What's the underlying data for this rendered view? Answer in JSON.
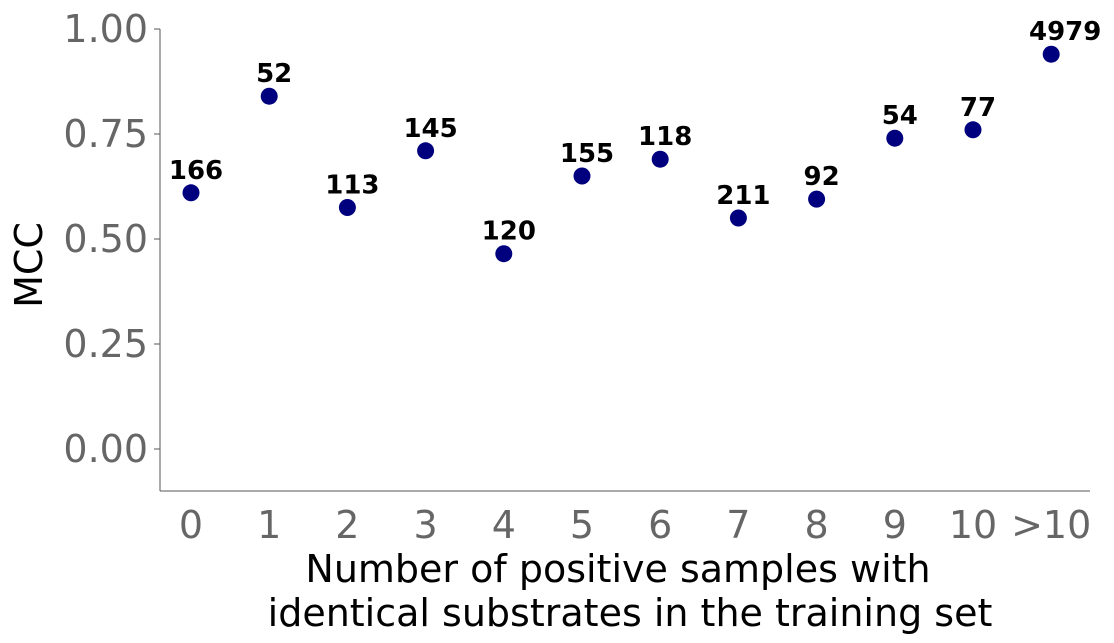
{
  "chart_data": {
    "type": "scatter",
    "title": "",
    "xlabel_lines": [
      "Number of positive samples with",
      "identical substrates in the training set"
    ],
    "ylabel": "MCC",
    "categories": [
      "0",
      "1",
      "2",
      "3",
      "4",
      "5",
      "6",
      "7",
      "8",
      "9",
      "10",
      ">10"
    ],
    "values": [
      0.61,
      0.84,
      0.575,
      0.71,
      0.465,
      0.65,
      0.69,
      0.55,
      0.595,
      0.74,
      0.76,
      0.94
    ],
    "point_labels": [
      "166",
      "52",
      "113",
      "145",
      "120",
      "155",
      "118",
      "211",
      "92",
      "54",
      "77",
      "4979"
    ],
    "ylim": [
      -0.1,
      1.0
    ],
    "yticks": [
      0.0,
      0.25,
      0.5,
      0.75,
      1.0
    ],
    "ytick_labels": [
      "0.00",
      "0.25",
      "0.50",
      "0.75",
      "1.00"
    ],
    "grid": false,
    "colors": {
      "marker": "#00007f",
      "tick_text": "#666666",
      "axis": "#555555"
    }
  }
}
